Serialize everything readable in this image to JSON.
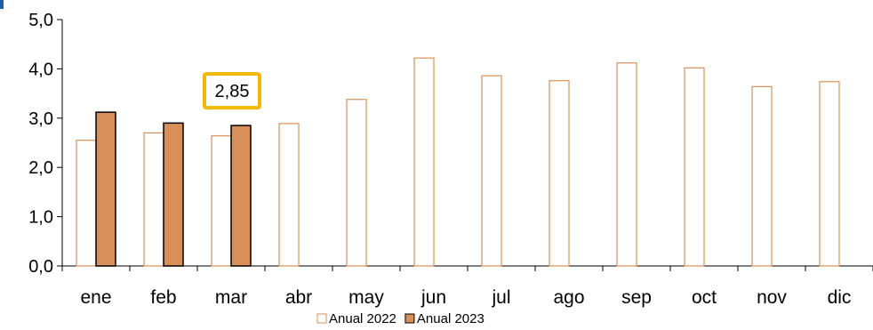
{
  "chart_data": {
    "type": "bar",
    "categories": [
      "ene",
      "feb",
      "mar",
      "abr",
      "may",
      "jun",
      "jul",
      "ago",
      "sep",
      "oct",
      "nov",
      "dic"
    ],
    "series": [
      {
        "name": "Anual 2022",
        "values": [
          2.55,
          2.7,
          2.64,
          2.89,
          3.38,
          4.22,
          3.86,
          3.76,
          4.12,
          4.02,
          3.64,
          3.74
        ],
        "color": "#d88f59",
        "style": "outline"
      },
      {
        "name": "Anual 2023",
        "values": [
          3.12,
          2.9,
          2.85,
          null,
          null,
          null,
          null,
          null,
          null,
          null,
          null,
          null
        ],
        "color": "#d88f59",
        "style": "filled"
      }
    ],
    "ylim": [
      0,
      5
    ],
    "yticks": [
      "0,0",
      "1,0",
      "2,0",
      "3,0",
      "4,0",
      "5,0"
    ],
    "ytick_values": [
      0,
      1,
      2,
      3,
      4,
      5
    ],
    "grid": false,
    "legend": "bottom-center",
    "annotations": [
      {
        "text": "2,85",
        "category": "mar",
        "series": "Anual 2023",
        "border_color": "#f2b700"
      }
    ]
  }
}
